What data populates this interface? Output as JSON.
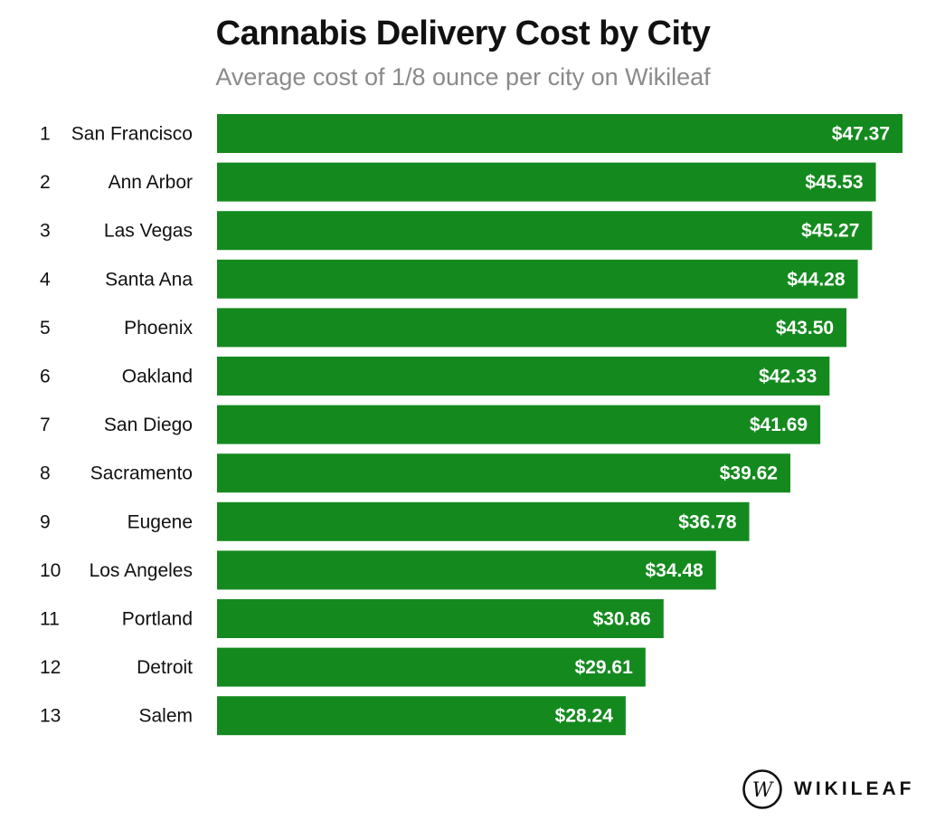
{
  "chart_data": {
    "type": "bar",
    "orientation": "horizontal",
    "title": "Cannabis Delivery Cost by City",
    "subtitle": "Average cost of 1/8 ounce per city on Wikileaf",
    "ranks": [
      "1",
      "2",
      "3",
      "4",
      "5",
      "6",
      "7",
      "8",
      "9",
      "10",
      "11",
      "12",
      "13"
    ],
    "categories": [
      "San Francisco",
      "Ann Arbor",
      "Las Vegas",
      "Santa Ana",
      "Phoenix",
      "Oakland",
      "San Diego",
      "Sacramento",
      "Eugene",
      "Los Angeles",
      "Portland",
      "Detroit",
      "Salem"
    ],
    "values": [
      47.37,
      45.53,
      45.27,
      44.28,
      43.5,
      42.33,
      41.69,
      39.62,
      36.78,
      34.48,
      30.86,
      29.61,
      28.24
    ],
    "value_labels": [
      "$47.37",
      "$45.53",
      "$45.27",
      "$44.28",
      "$43.50",
      "$42.33",
      "$41.69",
      "$39.62",
      "$36.78",
      "$34.48",
      "$30.86",
      "$29.61",
      "$28.24"
    ],
    "xlim": [
      0,
      47.37
    ],
    "xlabel": "",
    "ylabel": "",
    "bar_color": "#148a1e"
  },
  "brand": {
    "name": "WIKILEAF",
    "mark_letter": "W"
  }
}
